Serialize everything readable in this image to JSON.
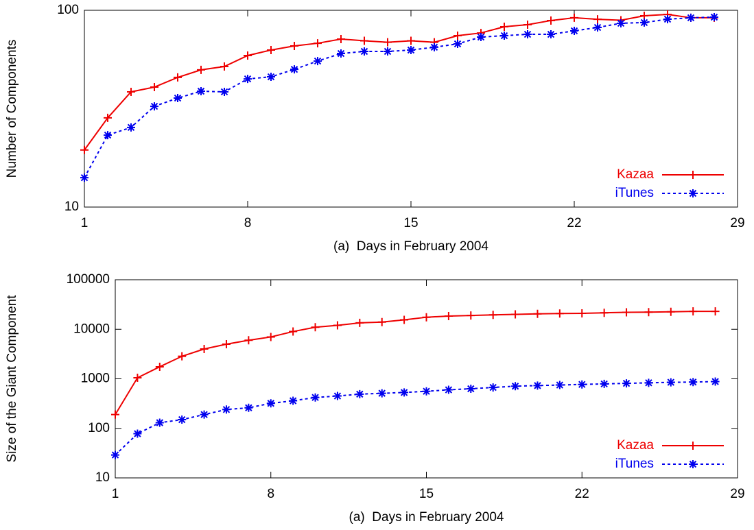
{
  "chart_data": [
    {
      "type": "line",
      "x_label": "(a)  Days in February 2004",
      "y_label": "Number of Components",
      "x": [
        1,
        2,
        3,
        4,
        5,
        6,
        7,
        8,
        9,
        10,
        11,
        12,
        13,
        14,
        15,
        16,
        17,
        18,
        19,
        20,
        21,
        22,
        23,
        24,
        25,
        26,
        27,
        28
      ],
      "xlim": [
        1,
        29
      ],
      "xticks": [
        1,
        8,
        15,
        22,
        29
      ],
      "ylim": [
        10,
        100
      ],
      "yticks": [
        10,
        100
      ],
      "log_y": true,
      "legend": "lower right",
      "series": [
        {
          "name": "Kazaa",
          "color": "#ee0000",
          "marker": "plus",
          "dash": false,
          "values": [
            19.5,
            28.4,
            38.5,
            40.7,
            45.6,
            49.8,
            51.8,
            58.9,
            62.8,
            65.9,
            68,
            71.4,
            70,
            68.8,
            70,
            68.8,
            74.3,
            76.7,
            82.5,
            84.5,
            88.7,
            91.6,
            90,
            89,
            93.8,
            95.3,
            91.6,
            91.6
          ]
        },
        {
          "name": "iTunes",
          "color": "#0000ee",
          "marker": "star",
          "dash": true,
          "values": [
            14.1,
            23.2,
            25.4,
            32.5,
            35.8,
            38.8,
            38.5,
            44.8,
            45.9,
            50.1,
            55.2,
            60.3,
            61.8,
            61.8,
            62.8,
            64.9,
            67.5,
            73.1,
            74.3,
            75.5,
            75.5,
            78.6,
            81.8,
            85.9,
            86.6,
            90.1,
            91.6,
            92.3
          ]
        }
      ]
    },
    {
      "type": "line",
      "x_label": "(a)  Days in February 2004",
      "y_label": "Size of the Giant Component",
      "x": [
        1,
        2,
        3,
        4,
        5,
        6,
        7,
        8,
        9,
        10,
        11,
        12,
        13,
        14,
        15,
        16,
        17,
        18,
        19,
        20,
        21,
        22,
        23,
        24,
        25,
        26,
        27,
        28
      ],
      "xlim": [
        1,
        29
      ],
      "xticks": [
        1,
        8,
        15,
        22,
        29
      ],
      "ylim": [
        10,
        100000
      ],
      "yticks": [
        10,
        100,
        1000,
        10000,
        100000
      ],
      "log_y": true,
      "legend": "lower right",
      "series": [
        {
          "name": "Kazaa",
          "color": "#ee0000",
          "marker": "plus",
          "dash": false,
          "values": [
            190,
            1050,
            1750,
            2850,
            4000,
            5000,
            6000,
            7000,
            9000,
            11000,
            12000,
            13500,
            14000,
            15500,
            17500,
            18500,
            19000,
            19500,
            20000,
            20500,
            20800,
            21000,
            21500,
            22000,
            22200,
            22500,
            23000,
            23000
          ]
        },
        {
          "name": "iTunes",
          "color": "#0000ee",
          "marker": "star",
          "dash": true,
          "values": [
            29,
            78,
            130,
            150,
            190,
            240,
            260,
            320,
            360,
            420,
            450,
            490,
            510,
            530,
            560,
            600,
            630,
            670,
            710,
            730,
            750,
            770,
            790,
            810,
            830,
            850,
            860,
            880
          ]
        }
      ]
    }
  ]
}
